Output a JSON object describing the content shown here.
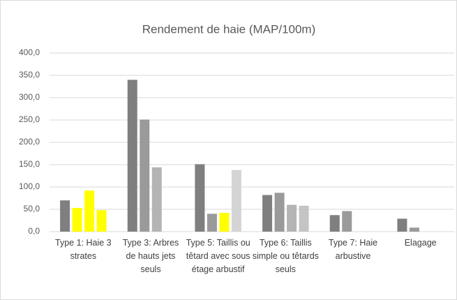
{
  "chart_data": {
    "type": "bar",
    "title": "Rendement de haie (MAP/100m)",
    "categories": [
      "Type 1: Haie 3 strates",
      "Type 3: Arbres de hauts jets seuls",
      "Type 5: Taillis ou têtard avec sous étage arbustif",
      "Type 6: Taillis simple ou têtards seuls",
      "Type 7: Haie arbustive",
      "Elagage"
    ],
    "series": [
      {
        "colors": [
          "#7f7f7f",
          "#7f7f7f",
          "#7f7f7f",
          "#7f7f7f",
          "#7f7f7f",
          "#7f7f7f"
        ],
        "values": [
          70,
          340,
          151,
          82,
          37,
          29
        ]
      },
      {
        "colors": [
          "#ffff00",
          "#9a9a9a",
          "#9a9a9a",
          "#9a9a9a",
          "#9a9a9a",
          "#9a9a9a"
        ],
        "values": [
          53,
          251,
          40,
          87,
          46,
          9
        ]
      },
      {
        "colors": [
          "#ffff00",
          "#b4b4b4",
          "#ffff00",
          "#b4b4b4",
          null,
          null
        ],
        "values": [
          92,
          144,
          42,
          60,
          null,
          null
        ]
      },
      {
        "colors": [
          "#ffff00",
          null,
          "#d4d4d4",
          "#c4c4c4",
          null,
          null
        ],
        "values": [
          48,
          null,
          138,
          58,
          null,
          null
        ]
      }
    ],
    "ylim": [
      0,
      400
    ],
    "yticks": [
      {
        "value": 0,
        "label": "0,0"
      },
      {
        "value": 50,
        "label": "50,0"
      },
      {
        "value": 100,
        "label": "100,0"
      },
      {
        "value": 150,
        "label": "150,0"
      },
      {
        "value": 200,
        "label": "200,0"
      },
      {
        "value": 250,
        "label": "250,0"
      },
      {
        "value": 300,
        "label": "300,0"
      },
      {
        "value": 350,
        "label": "350,0"
      },
      {
        "value": 400,
        "label": "400,0"
      }
    ],
    "grid": true
  }
}
